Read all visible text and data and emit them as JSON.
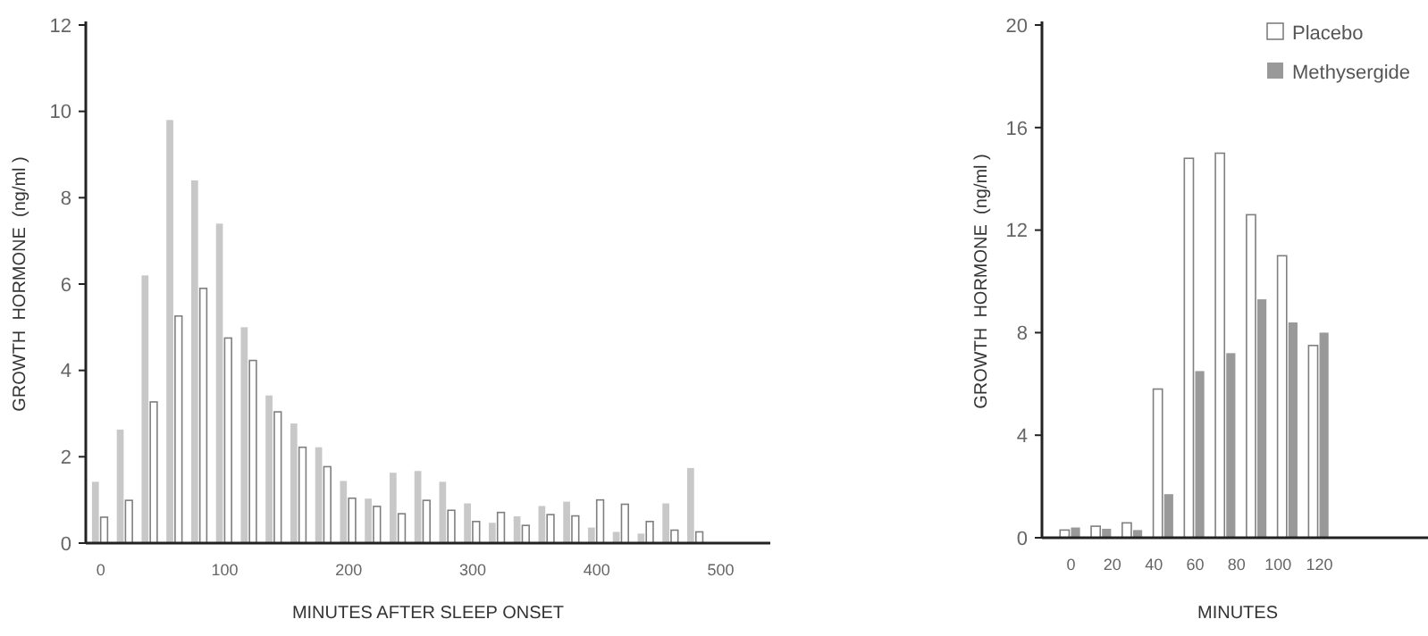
{
  "chart_data": [
    {
      "type": "bar",
      "xlabel": "MINUTES AFTER SLEEP ONSET",
      "ylabel": "GROWTH  HORMONE  (ng/ml )",
      "x": [
        0,
        20,
        40,
        60,
        80,
        100,
        120,
        140,
        160,
        180,
        200,
        220,
        240,
        260,
        280,
        300,
        320,
        340,
        360,
        380,
        400,
        420,
        440,
        460,
        480
      ],
      "xlim": [
        -12,
        540
      ],
      "xticks": [
        0,
        100,
        200,
        300,
        400,
        500
      ],
      "ylim": [
        0,
        12
      ],
      "yticks": [
        0,
        2,
        4,
        6,
        8,
        10,
        12
      ],
      "series": [
        {
          "color": "#c8c8c8",
          "values": [
            1.42,
            2.63,
            6.2,
            9.8,
            8.4,
            7.4,
            5.0,
            3.42,
            2.77,
            2.22,
            1.44,
            1.03,
            1.63,
            1.67,
            1.42,
            0.92,
            0.47,
            0.62,
            0.86,
            0.96,
            0.36,
            0.26,
            0.22,
            0.92,
            1.74
          ]
        },
        {
          "color": "#ffffff",
          "values": [
            0.6,
            0.99,
            3.27,
            5.26,
            5.9,
            4.75,
            4.23,
            3.04,
            2.22,
            1.77,
            1.04,
            0.85,
            0.68,
            0.99,
            0.76,
            0.5,
            0.71,
            0.41,
            0.66,
            0.63,
            1.0,
            0.9,
            0.5,
            0.3,
            0.26
          ]
        }
      ]
    },
    {
      "type": "bar",
      "xlabel": "MINUTES",
      "ylabel": "GROWTH  HORMONE  (ng/ml )",
      "x": [
        0,
        15,
        30,
        45,
        60,
        75,
        90,
        105,
        120
      ],
      "xlim": [
        -14,
        175
      ],
      "xticks": [
        0,
        20,
        40,
        60,
        80,
        100,
        120
      ],
      "ylim": [
        0,
        20
      ],
      "yticks": [
        0,
        4,
        8,
        12,
        16,
        20
      ],
      "legend": "top right",
      "series": [
        {
          "name": "Placebo",
          "color": "#ffffff",
          "values": [
            0.3,
            0.45,
            0.58,
            5.8,
            14.8,
            15.0,
            12.6,
            11.0,
            7.5
          ]
        },
        {
          "name": "Methysergide",
          "color": "#999999",
          "values": [
            0.4,
            0.35,
            0.3,
            1.7,
            6.5,
            7.2,
            9.3,
            8.4,
            8.0
          ]
        }
      ]
    }
  ]
}
